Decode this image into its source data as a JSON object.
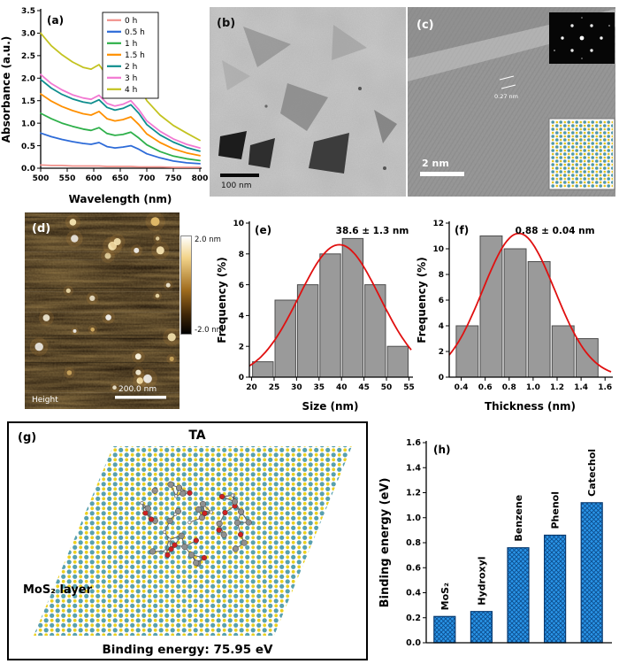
{
  "figure": {
    "panels": {
      "a": {
        "label": "(a)"
      },
      "b": {
        "label": "(b)",
        "scale_bar": "100 nm"
      },
      "c": {
        "label": "(c)",
        "scale_bar": "2 nm",
        "lattice_spacing": "0.27 nm"
      },
      "d": {
        "label": "(d)",
        "channel": "Height",
        "scale_bar": "200.0 nm",
        "colorbar_max": "2.0 nm",
        "colorbar_min": "-2.0 nm"
      },
      "e": {
        "label": "(e)"
      },
      "f": {
        "label": "(f)"
      },
      "g": {
        "label": "(g)",
        "molecule": "TA",
        "layer": "MoS₂ layer",
        "binding_energy": "Binding energy: 75.95 eV"
      },
      "h": {
        "label": "(h)"
      }
    }
  },
  "chart_data": [
    {
      "id": "a",
      "type": "line",
      "title": "",
      "xlabel": "Wavelength (nm)",
      "ylabel": "Absorbance (a.u.)",
      "xlim": [
        500,
        800
      ],
      "ylim": [
        0,
        3.5
      ],
      "xticks": [
        "500",
        "550",
        "600",
        "650",
        "700",
        "750",
        "800"
      ],
      "yticks": [
        "0.0",
        "0.5",
        "1.0",
        "1.5",
        "2.0",
        "2.5",
        "3.0",
        "3.5"
      ],
      "grid": false,
      "legend_position": "top-right",
      "x": [
        500,
        520,
        540,
        560,
        580,
        595,
        610,
        625,
        640,
        655,
        670,
        685,
        700,
        725,
        750,
        775,
        800
      ],
      "series": [
        {
          "name": "0 h",
          "color": "#f2928c",
          "values": [
            0.07,
            0.06,
            0.06,
            0.05,
            0.05,
            0.05,
            0.05,
            0.04,
            0.04,
            0.04,
            0.04,
            0.03,
            0.03,
            0.03,
            0.02,
            0.02,
            0.02
          ]
        },
        {
          "name": "0.5 h",
          "color": "#2d6bd8",
          "values": [
            0.78,
            0.7,
            0.64,
            0.59,
            0.55,
            0.53,
            0.57,
            0.48,
            0.45,
            0.47,
            0.5,
            0.42,
            0.32,
            0.23,
            0.16,
            0.12,
            0.1
          ]
        },
        {
          "name": "1 h",
          "color": "#2eb04a",
          "values": [
            1.22,
            1.1,
            1.0,
            0.93,
            0.87,
            0.84,
            0.9,
            0.77,
            0.73,
            0.75,
            0.8,
            0.67,
            0.52,
            0.37,
            0.27,
            0.21,
            0.17
          ]
        },
        {
          "name": "1.5 h",
          "color": "#ff9000",
          "values": [
            1.65,
            1.49,
            1.37,
            1.28,
            1.21,
            1.18,
            1.26,
            1.1,
            1.05,
            1.08,
            1.14,
            0.97,
            0.76,
            0.57,
            0.43,
            0.34,
            0.28
          ]
        },
        {
          "name": "2 h",
          "color": "#0f8e8e",
          "values": [
            1.97,
            1.78,
            1.64,
            1.54,
            1.47,
            1.44,
            1.52,
            1.35,
            1.29,
            1.33,
            1.41,
            1.22,
            0.97,
            0.74,
            0.58,
            0.46,
            0.38
          ]
        },
        {
          "name": "3 h",
          "color": "#f279d2",
          "values": [
            2.08,
            1.88,
            1.74,
            1.63,
            1.56,
            1.53,
            1.62,
            1.44,
            1.38,
            1.42,
            1.5,
            1.3,
            1.05,
            0.82,
            0.65,
            0.53,
            0.45
          ]
        },
        {
          "name": "4 h",
          "color": "#c3c320",
          "values": [
            3.0,
            2.72,
            2.52,
            2.36,
            2.24,
            2.2,
            2.3,
            2.05,
            1.95,
            2.0,
            2.12,
            1.85,
            1.5,
            1.18,
            0.95,
            0.78,
            0.62
          ]
        }
      ]
    },
    {
      "id": "e",
      "type": "bar",
      "xlabel": "Size (nm)",
      "ylabel": "Frequency (%)",
      "xlim": [
        19.5,
        55.5
      ],
      "ylim": [
        0,
        10
      ],
      "xticks": [
        "20",
        "25",
        "30",
        "35",
        "40",
        "45",
        "50",
        "55"
      ],
      "yticks": [
        "0",
        "2",
        "4",
        "6",
        "8",
        "10"
      ],
      "annotation": "38.6 ± 1.3 nm",
      "bar_color": "#9a9a9a",
      "bar_edge": "#4d4d4d",
      "bin_width": 5,
      "categories": [
        22.5,
        27.5,
        32.5,
        37.5,
        42.5,
        47.5,
        52.5
      ],
      "values": [
        1,
        5,
        6,
        8,
        9,
        6,
        2
      ],
      "fit": {
        "type": "gaussian",
        "mean": 39.5,
        "sigma": 9,
        "amplitude": 8.6,
        "color": "#e01010"
      }
    },
    {
      "id": "f",
      "type": "bar",
      "xlabel": "Thickness (nm)",
      "ylabel": "Frequency (%)",
      "xlim": [
        0.3,
        1.65
      ],
      "ylim": [
        0,
        12
      ],
      "xticks": [
        "0.4",
        "0.6",
        "0.8",
        "1.0",
        "1.2",
        "1.4",
        "1.6"
      ],
      "yticks": [
        "0",
        "2",
        "4",
        "6",
        "8",
        "10",
        "12"
      ],
      "annotation": "0.88 ± 0.04 nm",
      "bar_color": "#9a9a9a",
      "bar_edge": "#4d4d4d",
      "bin_width": 0.2,
      "categories": [
        0.45,
        0.65,
        0.85,
        1.05,
        1.25,
        1.45
      ],
      "values": [
        4,
        11,
        10,
        9,
        4,
        3
      ],
      "fit": {
        "type": "gaussian",
        "mean": 0.88,
        "sigma": 0.3,
        "amplitude": 11.2,
        "color": "#e01010"
      }
    },
    {
      "id": "h",
      "type": "bar",
      "xlabel": "",
      "ylabel": "Binding energy (eV)",
      "ylim": [
        0,
        1.6
      ],
      "yticks": [
        "0.0",
        "0.2",
        "0.4",
        "0.6",
        "0.8",
        "1.0",
        "1.2",
        "1.4",
        "1.6"
      ],
      "categories": [
        "MoS₂",
        "Hydroxyl",
        "Benzene",
        "Phenol",
        "Catechol"
      ],
      "values": [
        0.21,
        0.25,
        0.76,
        0.86,
        1.12
      ],
      "bar_color": "#2a95e8",
      "bar_edge": "#083a70",
      "hatch": true,
      "label_rotation": 90
    }
  ]
}
